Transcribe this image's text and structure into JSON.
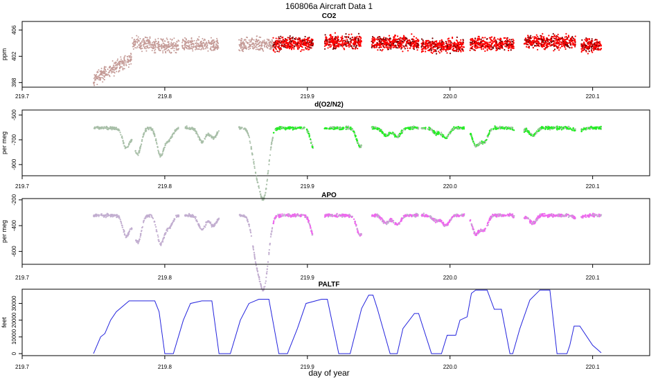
{
  "figure": {
    "title": "160806a   Aircraft Data 1",
    "xlabel": "day of year"
  },
  "colors": {
    "co2_light": "#c49a96",
    "co2_dark": "#ff0000",
    "co2_darkest": "#7a0000",
    "o2_light": "#a8bfa8",
    "o2_dark": "#22ee22",
    "apo_light": "#c2aed0",
    "apo_dark": "#ee66ee",
    "paltf_line": "#2222dd",
    "axis": "#000000"
  },
  "chart_data": [
    {
      "type": "scatter",
      "title": "CO2",
      "ylabel": "ppm",
      "xlim": [
        219.7,
        220.14
      ],
      "ylim": [
        397.3,
        407.3
      ],
      "xticks": [
        "219.7",
        "219.8",
        "219.9",
        "220.0",
        "220.1"
      ],
      "yticks": [
        "398",
        "402",
        "406"
      ],
      "series": [
        {
          "style": "light",
          "x_start": 219.75,
          "x_end": 219.876,
          "segments": [
            [
              219.75,
              219.777,
              401.5
            ],
            [
              219.777,
              219.79,
              404.0
            ],
            [
              219.79,
              219.81,
              403.6
            ],
            [
              219.812,
              219.838,
              403.7
            ],
            [
              219.852,
              219.876,
              403.8
            ]
          ]
        },
        {
          "style": "dark",
          "x_start": 219.876,
          "x_end": 220.106,
          "segments": [
            [
              219.876,
              219.882,
              403.8
            ],
            [
              219.882,
              219.904,
              404.0
            ],
            [
              219.912,
              219.938,
              404.2
            ],
            [
              219.945,
              219.978,
              404.0
            ],
            [
              219.98,
              220.01,
              403.6
            ],
            [
              220.014,
              220.045,
              403.9
            ],
            [
              220.052,
              220.088,
              404.2
            ],
            [
              220.092,
              220.106,
              403.6
            ]
          ]
        }
      ]
    },
    {
      "type": "scatter",
      "title": "d(O2/N2)",
      "ylabel": "per meg",
      "xlim": [
        219.7,
        220.14
      ],
      "ylim": [
        -990,
        -460
      ],
      "xticks": [
        "219.7",
        "219.8",
        "219.9",
        "220.0",
        "220.1"
      ],
      "yticks": [
        "-900",
        "-700",
        "-500"
      ],
      "series": [
        {
          "style": "light",
          "x_start": 219.75,
          "x_end": 219.876
        },
        {
          "style": "dark",
          "x_start": 219.876,
          "x_end": 220.106
        }
      ]
    },
    {
      "type": "scatter",
      "title": "APO",
      "ylabel": "per meg",
      "xlim": [
        219.7,
        220.14
      ],
      "ylim": [
        -700,
        -190
      ],
      "xticks": [
        "219.7",
        "219.8",
        "219.9",
        "220.0",
        "220.1"
      ],
      "yticks": [
        "-600",
        "-400",
        "-200"
      ],
      "series": [
        {
          "style": "light",
          "x_start": 219.75,
          "x_end": 219.876
        },
        {
          "style": "dark",
          "x_start": 219.876,
          "x_end": 220.106
        }
      ]
    },
    {
      "type": "line",
      "title": "PALTF",
      "ylabel": "feet",
      "xlim": [
        219.7,
        220.14
      ],
      "ylim": [
        -1200,
        38500
      ],
      "xticks": [
        "219.7",
        "219.8",
        "219.9",
        "220.0",
        "220.1"
      ],
      "yticks": [
        "0",
        "10000",
        "20000",
        "30000"
      ],
      "x": [
        219.75,
        219.755,
        219.758,
        219.762,
        219.766,
        219.775,
        219.793,
        219.796,
        219.8,
        219.806,
        219.813,
        219.818,
        219.826,
        219.833,
        219.838,
        219.846,
        219.853,
        219.859,
        219.866,
        219.873,
        219.88,
        219.886,
        219.893,
        219.899,
        219.91,
        219.914,
        219.922,
        219.93,
        219.938,
        219.943,
        219.946,
        219.949,
        219.958,
        219.963,
        219.967,
        219.975,
        219.978,
        219.987,
        219.994,
        219.998,
        220.004,
        220.007,
        220.012,
        220.015,
        220.018,
        220.026,
        220.031,
        220.036,
        220.042,
        220.044,
        220.049,
        220.056,
        220.063,
        220.07,
        220.075,
        220.082,
        220.084,
        220.087,
        220.091,
        220.1,
        220.104,
        220.106
      ],
      "y": [
        0,
        10000,
        12000,
        20000,
        25000,
        31500,
        31500,
        25000,
        0,
        0,
        20000,
        30000,
        31500,
        31500,
        0,
        0,
        20000,
        30000,
        32500,
        32500,
        0,
        0,
        15000,
        30000,
        32500,
        32500,
        0,
        0,
        27000,
        35000,
        35000,
        27000,
        0,
        0,
        15000,
        24000,
        24000,
        0,
        0,
        11000,
        11000,
        20000,
        22000,
        36000,
        38000,
        38000,
        26500,
        26500,
        0,
        0,
        15000,
        32000,
        38000,
        38000,
        0,
        0,
        5000,
        16500,
        16500,
        5000,
        2000,
        500
      ]
    }
  ]
}
